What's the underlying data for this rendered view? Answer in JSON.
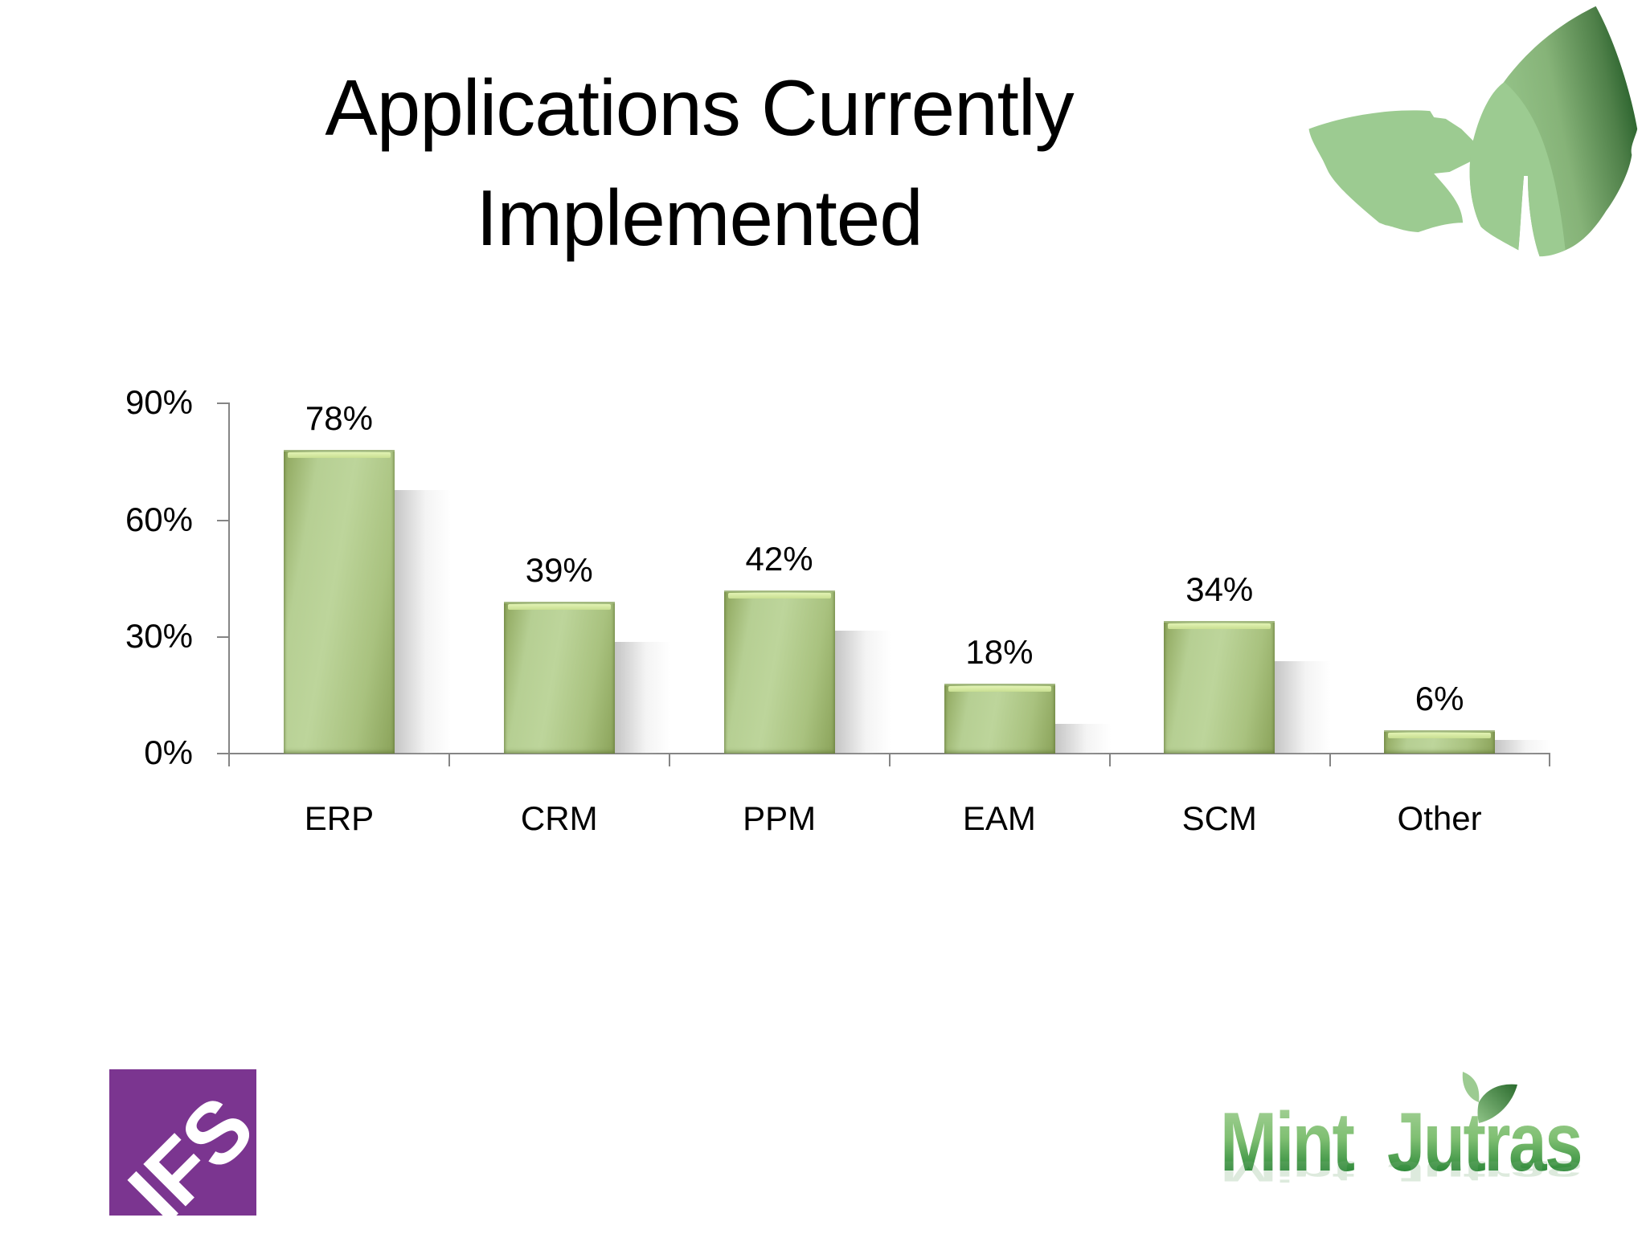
{
  "slide": {
    "title_line1": "Applications Currently",
    "title_line2": "Implemented"
  },
  "logos": {
    "ifs": {
      "text": "IFS",
      "color": "#7b3590"
    },
    "mint_jutras": {
      "text": "Mint  Jutras",
      "color": "#3a9a44"
    },
    "leaf_decoration": {
      "light": "#9ccb91",
      "dark": "#0c4a16"
    }
  },
  "colors": {
    "bar_light": "#bdd59b",
    "bar_dark": "#8ea65c",
    "bar_highlight": "#e2f2b3",
    "axis": "#858585"
  },
  "chart_data": {
    "type": "bar",
    "title": "Applications Currently Implemented",
    "categories": [
      "ERP",
      "CRM",
      "PPM",
      "EAM",
      "SCM",
      "Other"
    ],
    "values": [
      78,
      39,
      42,
      18,
      34,
      6
    ],
    "value_labels": [
      "78%",
      "39%",
      "42%",
      "18%",
      "34%",
      "6%"
    ],
    "xlabel": "",
    "ylabel": "",
    "ylim": [
      0,
      90
    ],
    "yticks": [
      "0%",
      "30%",
      "60%",
      "90%"
    ],
    "grid": false,
    "legend": "none",
    "data_labels": true
  }
}
